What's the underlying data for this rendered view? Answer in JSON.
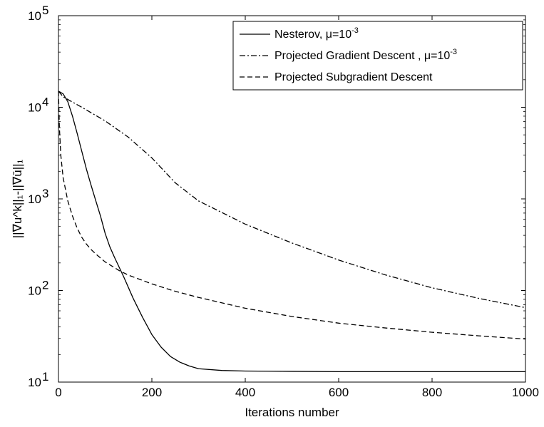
{
  "chart_data": {
    "type": "line",
    "xlabel": "Iterations number",
    "ylabel": "||∇u^k||₁-||∇ū||₁",
    "yscale": "log",
    "xlim": [
      0,
      1000
    ],
    "ylim": [
      10,
      100000
    ],
    "x_ticks": [
      0,
      200,
      400,
      600,
      800,
      1000
    ],
    "y_ticks": [
      {
        "value": 10,
        "base": "10",
        "exp": "1"
      },
      {
        "value": 100,
        "base": "10",
        "exp": "2"
      },
      {
        "value": 1000,
        "base": "10",
        "exp": "3"
      },
      {
        "value": 10000,
        "base": "10",
        "exp": "4"
      },
      {
        "value": 100000,
        "base": "10",
        "exp": "5"
      }
    ],
    "legend_position": "top-right",
    "series": [
      {
        "name": "Nesterov, μ=10",
        "name_sup": "-3",
        "style": "solid",
        "x": [
          0,
          10,
          20,
          30,
          40,
          50,
          60,
          70,
          80,
          90,
          100,
          110,
          120,
          140,
          160,
          180,
          200,
          220,
          240,
          260,
          280,
          300,
          350,
          400,
          500,
          600,
          700,
          800,
          900,
          1000
        ],
        "y": [
          15000,
          14000,
          11500,
          8000,
          5200,
          3300,
          2100,
          1400,
          950,
          650,
          420,
          300,
          230,
          140,
          82,
          51,
          33,
          24,
          19,
          16.5,
          15,
          14,
          13.4,
          13.2,
          13.1,
          13.0,
          13.0,
          13.0,
          13.0,
          13.0
        ]
      },
      {
        "name": "Projected Gradient Descent , μ=10",
        "name_sup": "-3",
        "style": "dashdot",
        "x": [
          0,
          10,
          50,
          100,
          150,
          200,
          250,
          300,
          400,
          500,
          600,
          700,
          800,
          900,
          1000
        ],
        "y": [
          15000,
          13000,
          10000,
          7100,
          4700,
          2800,
          1500,
          950,
          530,
          330,
          215,
          148,
          107,
          82,
          65
        ]
      },
      {
        "name": "Projected Subgradient Descent",
        "style": "dashed",
        "x": [
          0,
          2,
          5,
          10,
          20,
          30,
          40,
          50,
          60,
          70,
          80,
          100,
          130,
          150,
          200,
          250,
          300,
          400,
          500,
          600,
          700,
          800,
          900,
          1000
        ],
        "y": [
          15000,
          6000,
          3000,
          1700,
          950,
          650,
          480,
          380,
          320,
          280,
          250,
          205,
          165,
          147,
          118,
          98,
          84,
          64,
          52,
          44,
          39,
          35,
          32,
          29.5
        ]
      }
    ]
  }
}
